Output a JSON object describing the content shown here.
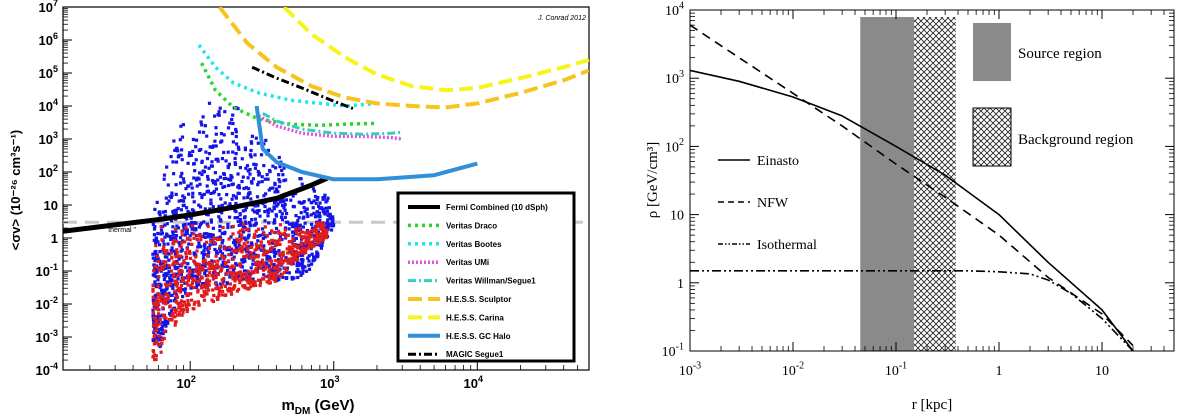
{
  "chart_data": [
    {
      "type": "scatter",
      "credit": "J. Conrad 2012",
      "xlabel": "m",
      "xlabel_sub": "DM",
      "xlabel_unit": " (GeV)",
      "ylabel": "<σv> (10⁻²⁶ cm³s⁻¹)",
      "x_scale": "log",
      "y_scale": "log",
      "xlim": [
        13,
        60000
      ],
      "ylim": [
        0.0001,
        10000000
      ],
      "x_ticks": [
        {
          "v": 100,
          "b": "10",
          "e": "2"
        },
        {
          "v": 1000,
          "b": "10",
          "e": "3"
        },
        {
          "v": 10000,
          "b": "10",
          "e": "4"
        }
      ],
      "y_ticks": [
        {
          "v": 10000000,
          "b": "10",
          "e": "7"
        },
        {
          "v": 1000000,
          "b": "10",
          "e": "6"
        },
        {
          "v": 100000,
          "b": "10",
          "e": "5"
        },
        {
          "v": 10000,
          "b": "10",
          "e": "4"
        },
        {
          "v": 1000,
          "b": "10",
          "e": "3"
        },
        {
          "v": 100,
          "b": "10",
          "e": "2"
        },
        {
          "v": 10,
          "b": "10",
          "e": ""
        },
        {
          "v": 1,
          "b": "1",
          "e": ""
        },
        {
          "v": 0.1,
          "b": "10",
          "e": "-1"
        },
        {
          "v": 0.01,
          "b": "10",
          "e": "-2"
        },
        {
          "v": 0.001,
          "b": "10",
          "e": "-3"
        },
        {
          "v": 0.0001,
          "b": "10",
          "e": "-4"
        }
      ],
      "thermal": {
        "y": 3,
        "label": "\" thermal \"",
        "label_x": 25,
        "label_y": 1.5
      },
      "scatter_clouds": [
        {
          "color": "#1515e6",
          "seed": 7,
          "count": 1300,
          "x_range": [
            55,
            1000
          ],
          "profile": [
            [
              55,
              0.0008,
              8
            ],
            [
              62,
              0.0005,
              60
            ],
            [
              70,
              0.002,
              300
            ],
            [
              80,
              0.01,
              2000
            ],
            [
              100,
              0.02,
              5000
            ],
            [
              130,
              0.03,
              20000
            ],
            [
              170,
              0.04,
              30000
            ],
            [
              250,
              0.05,
              5000
            ],
            [
              350,
              0.05,
              1000
            ],
            [
              500,
              0.05,
              300
            ],
            [
              700,
              0.1,
              60
            ],
            [
              900,
              1,
              20
            ],
            [
              1000,
              2,
              5
            ]
          ]
        },
        {
          "color": "#e01c1c",
          "seed": 13,
          "count": 750,
          "x_range": [
            55,
            900
          ],
          "profile": [
            [
              55,
              0.0002,
              0.3
            ],
            [
              60,
              0.0002,
              3
            ],
            [
              70,
              0.001,
              3
            ],
            [
              90,
              0.005,
              3
            ],
            [
              130,
              0.01,
              3
            ],
            [
              200,
              0.02,
              3
            ],
            [
              400,
              0.05,
              3
            ],
            [
              700,
              0.5,
              3
            ],
            [
              900,
              1,
              3
            ]
          ]
        }
      ],
      "series": [
        {
          "name": "Fermi Combined (10 dSph)",
          "color": "#000000",
          "dash": "",
          "width": 5,
          "points": [
            [
              13,
              1.6
            ],
            [
              30,
              2.5
            ],
            [
              60,
              3.6
            ],
            [
              100,
              5
            ],
            [
              200,
              8.5
            ],
            [
              400,
              16
            ],
            [
              700,
              40
            ],
            [
              900,
              65
            ]
          ]
        },
        {
          "name": "Veritas Draco",
          "color": "#2bd32b",
          "dash": "3 4",
          "width": 3.5,
          "points": [
            [
              120,
              200000
            ],
            [
              150,
              30000
            ],
            [
              200,
              9000
            ],
            [
              300,
              4000
            ],
            [
              500,
              2800
            ],
            [
              800,
              2600
            ],
            [
              1200,
              2800
            ],
            [
              2000,
              3000
            ]
          ]
        },
        {
          "name": "Veritas Bootes",
          "color": "#1fe5ea",
          "dash": "3 4",
          "width": 3.5,
          "points": [
            [
              115,
              700000
            ],
            [
              150,
              150000
            ],
            [
              200,
              50000
            ],
            [
              300,
              25000
            ],
            [
              500,
              15000
            ],
            [
              800,
              12000
            ],
            [
              1200,
              10000
            ],
            [
              2000,
              12000
            ]
          ]
        },
        {
          "name": "Veritas UMi",
          "color": "#de55de",
          "dash": "2 2",
          "width": 3.5,
          "points": [
            [
              300,
              5000
            ],
            [
              400,
              2500
            ],
            [
              600,
              1500
            ],
            [
              1000,
              1200
            ],
            [
              1600,
              1200
            ],
            [
              2500,
              1100
            ],
            [
              3000,
              1000
            ]
          ]
        },
        {
          "name": "Veritas Willman/Segue1",
          "color": "#32d0b8",
          "dash": "8 3 2 3",
          "width": 3,
          "points": [
            [
              320,
              6000
            ],
            [
              400,
              3500
            ],
            [
              600,
              2000
            ],
            [
              1000,
              1500
            ],
            [
              1600,
              1400
            ],
            [
              2500,
              1500
            ],
            [
              3000,
              1600
            ]
          ]
        },
        {
          "name": "H.E.S.S. Sculptor",
          "color": "#f7c31f",
          "dash": "14 6",
          "width": 4,
          "points": [
            [
              160,
              10000000
            ],
            [
              250,
              800000
            ],
            [
              400,
              150000
            ],
            [
              700,
              40000
            ],
            [
              1200,
              18000
            ],
            [
              2000,
              12000
            ],
            [
              3500,
              10000
            ],
            [
              6000,
              9000
            ],
            [
              10000,
              12000
            ],
            [
              20000,
              25000
            ],
            [
              40000,
              60000
            ],
            [
              60000,
              120000
            ]
          ]
        },
        {
          "name": "H.E.S.S. Carina",
          "color": "#f5f51a",
          "dash": "14 6",
          "width": 4,
          "points": [
            [
              450,
              10000000
            ],
            [
              700,
              1500000
            ],
            [
              1200,
              300000
            ],
            [
              2000,
              90000
            ],
            [
              3500,
              40000
            ],
            [
              6000,
              30000
            ],
            [
              10000,
              35000
            ],
            [
              20000,
              70000
            ],
            [
              40000,
              150000
            ],
            [
              60000,
              250000
            ]
          ]
        },
        {
          "name": "H.E.S.S. GC Halo",
          "color": "#2f8fd8",
          "dash": "",
          "width": 4,
          "points": [
            [
              290,
              10000
            ],
            [
              320,
              500
            ],
            [
              400,
              200
            ],
            [
              600,
              100
            ],
            [
              1000,
              60
            ],
            [
              2000,
              60
            ],
            [
              5000,
              80
            ],
            [
              10000,
              180
            ]
          ]
        },
        {
          "name": "MAGIC Segue1",
          "color": "#000000",
          "dash": "8 3 2 3",
          "width": 3,
          "points": [
            [
              270,
              150000
            ],
            [
              400,
              70000
            ],
            [
              600,
              35000
            ],
            [
              1000,
              14000
            ],
            [
              1400,
              8000
            ]
          ]
        }
      ]
    },
    {
      "type": "line",
      "xlabel": "r [kpc]",
      "ylabel": "ρ [GeV/cm³]",
      "x_scale": "log",
      "y_scale": "log",
      "xlim": [
        0.001,
        50
      ],
      "ylim": [
        0.1,
        10000
      ],
      "x_ticks": [
        {
          "v": 0.001,
          "b": "10",
          "e": "-3"
        },
        {
          "v": 0.01,
          "b": "10",
          "e": "-2"
        },
        {
          "v": 0.1,
          "b": "10",
          "e": "-1"
        },
        {
          "v": 1,
          "b": "1",
          "e": ""
        },
        {
          "v": 10,
          "b": "10",
          "e": ""
        }
      ],
      "y_ticks": [
        {
          "v": 10000,
          "b": "10",
          "e": "4"
        },
        {
          "v": 1000,
          "b": "10",
          "e": "3"
        },
        {
          "v": 100,
          "b": "10",
          "e": "2"
        },
        {
          "v": 10,
          "b": "10",
          "e": ""
        },
        {
          "v": 1,
          "b": "1",
          "e": ""
        },
        {
          "v": 0.1,
          "b": "10",
          "e": "-1"
        }
      ],
      "source_region": {
        "x0": 0.045,
        "x1": 0.15,
        "label": "Source region",
        "color": "#8a8a8a"
      },
      "background_region": {
        "x0": 0.15,
        "x1": 0.38,
        "label": "Background region"
      },
      "series": [
        {
          "name": "Einasto",
          "dash": "",
          "points": [
            [
              0.001,
              1300
            ],
            [
              0.003,
              900
            ],
            [
              0.01,
              530
            ],
            [
              0.03,
              280
            ],
            [
              0.1,
              100
            ],
            [
              0.3,
              38
            ],
            [
              1,
              10
            ],
            [
              3,
              2
            ],
            [
              10,
              0.4
            ],
            [
              20,
              0.1
            ]
          ]
        },
        {
          "name": "NFW",
          "dash": "9 6",
          "points": [
            [
              0.001,
              6000
            ],
            [
              0.003,
              2000
            ],
            [
              0.01,
              600
            ],
            [
              0.03,
              200
            ],
            [
              0.1,
              55
            ],
            [
              0.3,
              18
            ],
            [
              1,
              5
            ],
            [
              3,
              1.2
            ],
            [
              10,
              0.35
            ],
            [
              20,
              0.12
            ]
          ]
        },
        {
          "name": "Isothermal",
          "dash": "9 3 2 3 2 3",
          "points": [
            [
              0.001,
              1.5
            ],
            [
              0.1,
              1.5
            ],
            [
              0.5,
              1.5
            ],
            [
              1,
              1.45
            ],
            [
              2,
              1.35
            ],
            [
              3,
              1.1
            ],
            [
              5,
              0.7
            ],
            [
              10,
              0.3
            ],
            [
              20,
              0.1
            ]
          ]
        }
      ]
    }
  ]
}
